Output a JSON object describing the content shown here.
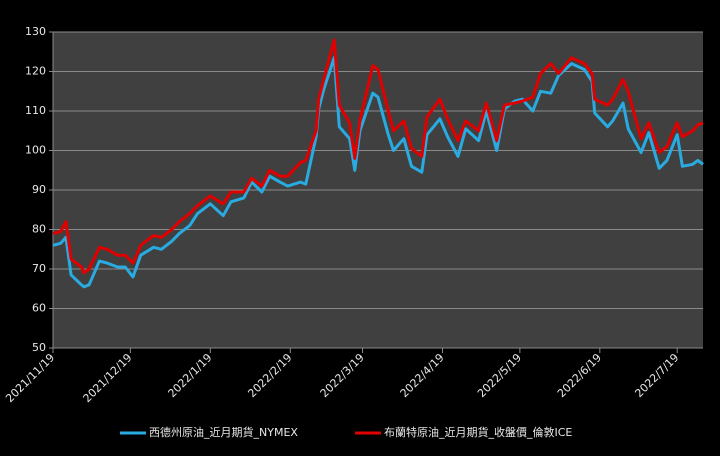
{
  "chart_data": {
    "type": "line",
    "x": [
      "2021/11/19",
      "2021/11/22",
      "2021/11/24",
      "2021/11/26",
      "2021/11/30",
      "2021/12/1",
      "2021/12/3",
      "2021/12/7",
      "2021/12/10",
      "2021/12/14",
      "2021/12/17",
      "2021/12/20",
      "2021/12/23",
      "2021/12/28",
      "2021/12/31",
      "2022/1/4",
      "2022/1/7",
      "2022/1/11",
      "2022/1/14",
      "2022/1/19",
      "2022/1/24",
      "2022/1/27",
      "2022/2/1",
      "2022/2/4",
      "2022/2/8",
      "2022/2/11",
      "2022/2/15",
      "2022/2/18",
      "2022/2/23",
      "2022/2/25",
      "2022/3/1",
      "2022/3/2",
      "2022/3/4",
      "2022/3/8",
      "2022/3/10",
      "2022/3/14",
      "2022/3/16",
      "2022/3/18",
      "2022/3/23",
      "2022/3/25",
      "2022/3/29",
      "2022/3/31",
      "2022/4/4",
      "2022/4/7",
      "2022/4/11",
      "2022/4/13",
      "2022/4/18",
      "2022/4/21",
      "2022/4/25",
      "2022/4/28",
      "2022/5/3",
      "2022/5/6",
      "2022/5/10",
      "2022/5/13",
      "2022/5/17",
      "2022/5/20",
      "2022/5/24",
      "2022/5/27",
      "2022/5/31",
      "2022/6/3",
      "2022/6/8",
      "2022/6/13",
      "2022/6/16",
      "2022/6/17",
      "2022/6/22",
      "2022/6/24",
      "2022/6/28",
      "2022/6/30",
      "2022/7/5",
      "2022/7/8",
      "2022/7/12",
      "2022/7/15",
      "2022/7/19",
      "2022/7/21",
      "2022/7/25",
      "2022/7/27",
      "2022/7/29"
    ],
    "series": [
      {
        "name": "西德州原油_近月期貨_NYMEX",
        "color": "#29abe2",
        "values": [
          76,
          76.5,
          78,
          68.5,
          66,
          65.5,
          66,
          72,
          71.5,
          70.5,
          70.5,
          68,
          73.5,
          75.5,
          75,
          77,
          79,
          81,
          84,
          86.5,
          83.5,
          87,
          88,
          92,
          89.5,
          93.5,
          92,
          91,
          92,
          91.5,
          103.5,
          110.5,
          115.5,
          123.5,
          106,
          103,
          95,
          105,
          114.5,
          113.5,
          104,
          100,
          103,
          96,
          94.5,
          104,
          108,
          103.5,
          98.5,
          105.5,
          102.5,
          110,
          100,
          110.5,
          112.5,
          113,
          110,
          115,
          114.5,
          119,
          122,
          120.5,
          117.5,
          109.5,
          106,
          107.5,
          112,
          105.5,
          99.5,
          104.5,
          95.5,
          97.5,
          104,
          96,
          96.5,
          97.5,
          96.5
        ]
      },
      {
        "name": "布蘭特原油_近月期貨_收盤價_倫敦ICE",
        "color": "#e00000",
        "values": [
          79,
          79.5,
          82,
          72.5,
          70.5,
          69,
          70,
          75.5,
          75,
          73.5,
          73.5,
          71.5,
          76,
          78.5,
          78,
          80,
          82,
          84,
          86,
          88.5,
          86.5,
          89.5,
          89.5,
          93,
          91,
          95,
          93.5,
          93.5,
          97,
          97.5,
          105,
          113,
          118,
          128,
          111.5,
          107,
          98,
          107.5,
          121.5,
          120.5,
          110,
          105,
          107.5,
          100.5,
          98.5,
          108.5,
          113,
          108,
          102.5,
          107.5,
          105,
          112,
          102.5,
          111.5,
          112,
          112.5,
          113.5,
          119.5,
          122,
          119.5,
          123.5,
          122,
          119.5,
          113,
          111.5,
          113,
          118,
          115,
          103,
          107,
          99.5,
          101,
          107,
          103.5,
          105,
          106.5,
          107
        ]
      }
    ],
    "xlim": [
      "2021/11/19",
      "2022/7/29"
    ],
    "xticks": [
      "2021/11/19",
      "2021/12/19",
      "2022/1/19",
      "2022/2/19",
      "2022/3/19",
      "2022/4/19",
      "2022/5/19",
      "2022/6/19",
      "2022/7/19"
    ],
    "ylim": [
      50,
      130
    ],
    "yticks": [
      50,
      60,
      70,
      80,
      90,
      100,
      110,
      120,
      130
    ],
    "grid": true,
    "legend": "bottom"
  }
}
